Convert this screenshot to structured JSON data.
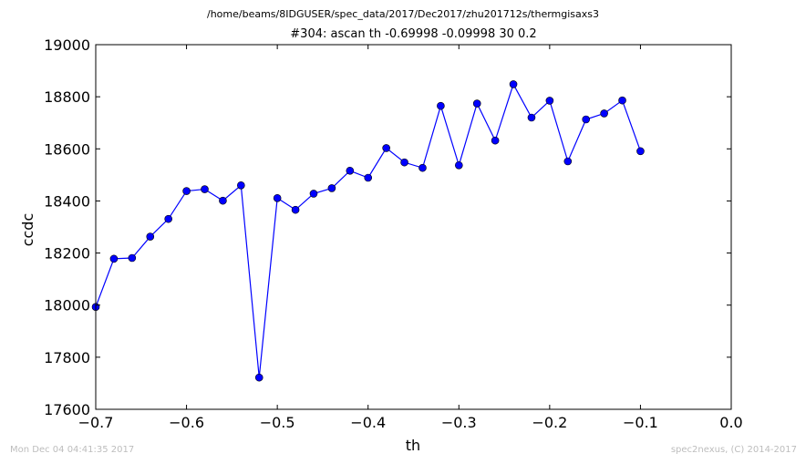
{
  "header": {
    "suptitle": "/home/beams/8IDGUSER/spec_data/2017/Dec2017/zhu201712s/thermgisaxs3",
    "title": "#304: ascan  th -0.69998 -0.09998  30 0.2"
  },
  "footer": {
    "timestamp": "Mon Dec 04 04:41:35 2017",
    "credit": "spec2nexus, (C) 2014-2017"
  },
  "chart_data": {
    "type": "line",
    "title": "#304: ascan  th -0.69998 -0.09998  30 0.2",
    "xlabel": "th",
    "ylabel": "ccdc",
    "xlim": [
      -0.7,
      0.0
    ],
    "ylim": [
      17600,
      19000
    ],
    "xticks": [
      -0.7,
      -0.6,
      -0.5,
      -0.4,
      -0.3,
      -0.2,
      -0.1,
      0.0
    ],
    "xtick_labels": [
      "−0.7",
      "−0.6",
      "−0.5",
      "−0.4",
      "−0.3",
      "−0.2",
      "−0.1",
      "0.0"
    ],
    "yticks": [
      17600,
      17800,
      18000,
      18200,
      18400,
      18600,
      18800,
      19000
    ],
    "ytick_labels": [
      "17600",
      "17800",
      "18000",
      "18200",
      "18400",
      "18600",
      "18800",
      "19000"
    ],
    "grid": false,
    "line_color": "#0000ff",
    "marker_color": "#0000ff",
    "series": [
      {
        "x": [
          -0.69998,
          -0.67998,
          -0.65998,
          -0.63998,
          -0.61998,
          -0.59998,
          -0.57998,
          -0.55998,
          -0.53998,
          -0.51998,
          -0.49998,
          -0.47998,
          -0.45998,
          -0.43998,
          -0.41998,
          -0.39998,
          -0.37998,
          -0.35998,
          -0.33998,
          -0.31998,
          -0.29998,
          -0.27998,
          -0.25998,
          -0.23998,
          -0.21998,
          -0.19998,
          -0.17998,
          -0.15998,
          -0.13998,
          -0.11998,
          -0.09998
        ],
        "y": [
          17993,
          18178,
          18181,
          18263,
          18331,
          18438,
          18445,
          18401,
          18460,
          17722,
          18411,
          18366,
          18428,
          18449,
          18516,
          18489,
          18603,
          18548,
          18527,
          18765,
          18537,
          18774,
          18632,
          18848,
          18720,
          18785,
          18552,
          18713,
          18736,
          18786,
          18591
        ]
      }
    ]
  }
}
